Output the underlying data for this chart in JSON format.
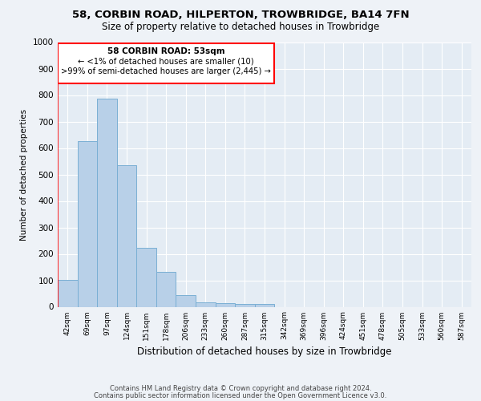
{
  "title": "58, CORBIN ROAD, HILPERTON, TROWBRIDGE, BA14 7FN",
  "subtitle": "Size of property relative to detached houses in Trowbridge",
  "xlabel": "Distribution of detached houses by size in Trowbridge",
  "ylabel": "Number of detached properties",
  "bar_color": "#b8d0e8",
  "bar_edge_color": "#7aafd4",
  "categories": [
    "42sqm",
    "69sqm",
    "97sqm",
    "124sqm",
    "151sqm",
    "178sqm",
    "206sqm",
    "233sqm",
    "260sqm",
    "287sqm",
    "315sqm",
    "342sqm",
    "369sqm",
    "396sqm",
    "424sqm",
    "451sqm",
    "478sqm",
    "505sqm",
    "533sqm",
    "560sqm",
    "587sqm"
  ],
  "values": [
    102,
    625,
    785,
    535,
    222,
    133,
    44,
    17,
    15,
    10,
    12,
    0,
    0,
    0,
    0,
    0,
    0,
    0,
    0,
    0,
    0
  ],
  "ylim": [
    0,
    1000
  ],
  "yticks": [
    0,
    100,
    200,
    300,
    400,
    500,
    600,
    700,
    800,
    900,
    1000
  ],
  "annotation_line1": "58 CORBIN ROAD: 53sqm",
  "annotation_line2": "← <1% of detached houses are smaller (10)",
  "annotation_line3": ">99% of semi-detached houses are larger (2,445) →",
  "footer_line1": "Contains HM Land Registry data © Crown copyright and database right 2024.",
  "footer_line2": "Contains public sector information licensed under the Open Government Licence v3.0.",
  "background_color": "#eef2f7",
  "plot_background_color": "#e4ecf4"
}
